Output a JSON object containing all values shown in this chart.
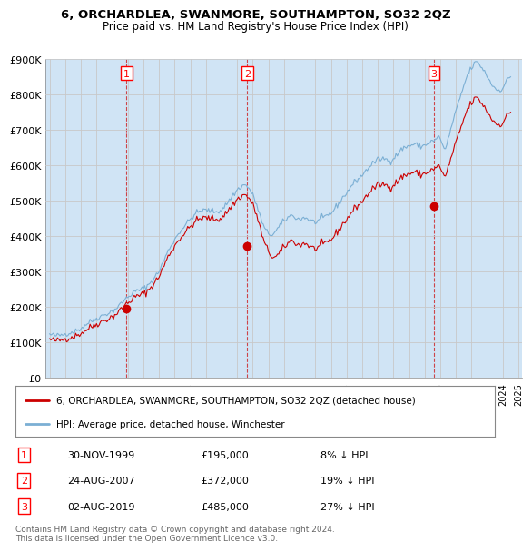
{
  "title": "6, ORCHARDLEA, SWANMORE, SOUTHAMPTON, SO32 2QZ",
  "subtitle": "Price paid vs. HM Land Registry's House Price Index (HPI)",
  "ylim": [
    0,
    900000
  ],
  "yticks": [
    0,
    100000,
    200000,
    300000,
    400000,
    500000,
    600000,
    700000,
    800000,
    900000
  ],
  "ytick_labels": [
    "£0",
    "£100K",
    "£200K",
    "£300K",
    "£400K",
    "£500K",
    "£600K",
    "£700K",
    "£800K",
    "£900K"
  ],
  "hpi_color": "#7bafd4",
  "hpi_fill_color": "#d0e4f5",
  "price_color": "#cc0000",
  "background_color": "#ffffff",
  "grid_color": "#c8c8c8",
  "legend_label_red": "6, ORCHARDLEA, SWANMORE, SOUTHAMPTON, SO32 2QZ (detached house)",
  "legend_label_blue": "HPI: Average price, detached house, Winchester",
  "transactions": [
    {
      "num": 1,
      "date": "30-NOV-1999",
      "price": 195000,
      "pct": "8%",
      "direction": "↓",
      "x_year": 1999.917
    },
    {
      "num": 2,
      "date": "24-AUG-2007",
      "price": 372000,
      "pct": "19%",
      "direction": "↓",
      "x_year": 2007.646
    },
    {
      "num": 3,
      "date": "02-AUG-2019",
      "price": 485000,
      "pct": "27%",
      "direction": "↓",
      "x_year": 2019.584
    }
  ],
  "footer": "Contains HM Land Registry data © Crown copyright and database right 2024.\nThis data is licensed under the Open Government Licence v3.0.",
  "xlim_left": 1994.75,
  "xlim_right": 2025.25
}
